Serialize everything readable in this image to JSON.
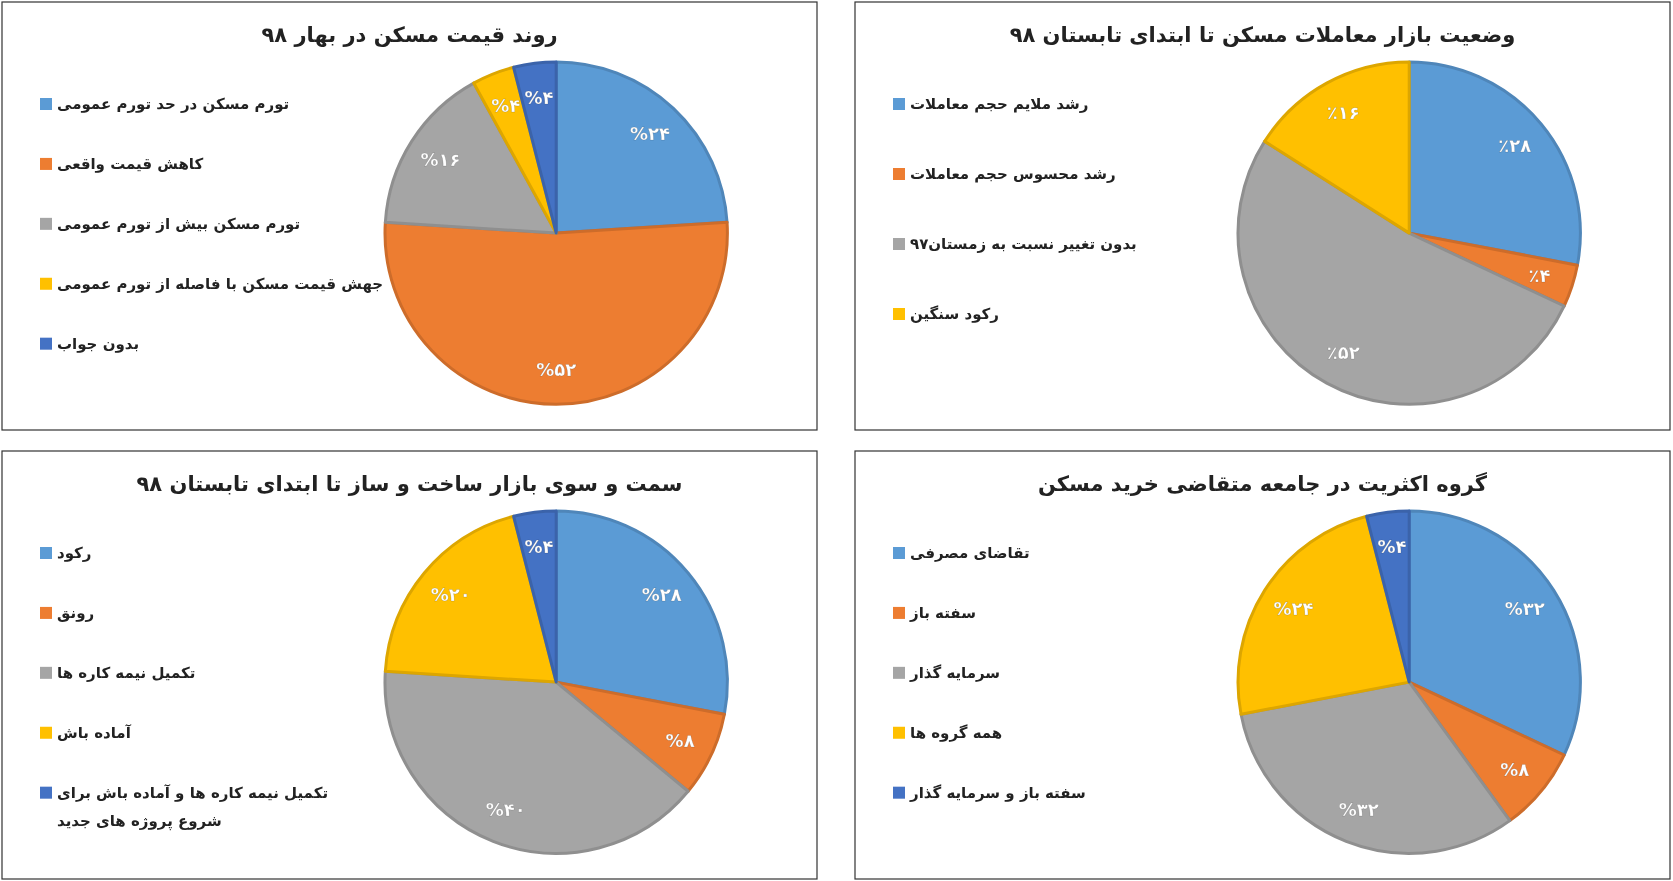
{
  "chart_data": [
    {
      "type": "pie",
      "title": "روند قیمت مسکن در بهار ۹۸",
      "legend": "left",
      "categories": [
        "تورم مسکن در حد تورم عمومی",
        "کاهش قیمت واقعی",
        "تورم مسکن بیش از تورم عمومی",
        "جهش قیمت مسکن با فاصله از تورم عمومی",
        "بدون جواب"
      ],
      "values": [
        24,
        52,
        16,
        4,
        4
      ],
      "value_labels": [
        "%۲۴",
        "%۵۲",
        "%۱۶",
        "%۴",
        "%۴"
      ],
      "colors": [
        "#5b9bd5",
        "#ed7d31",
        "#a5a5a5",
        "#ffc000",
        "#4472c4"
      ]
    },
    {
      "type": "pie",
      "title": "وضعیت بازار معاملات مسکن تا ابتدای تابستان ۹۸",
      "legend": "left",
      "categories": [
        "رشد ملایم حجم معاملات",
        "رشد محسوس حجم معاملات",
        "بدون تغییر نسبت به زمستان۹۷",
        "رکود سنگین"
      ],
      "values": [
        28,
        4,
        52,
        16
      ],
      "value_labels": [
        "٪۲۸",
        "٪۴",
        "٪۵۲",
        "٪۱۶"
      ],
      "colors": [
        "#5b9bd5",
        "#ed7d31",
        "#a5a5a5",
        "#ffc000"
      ]
    },
    {
      "type": "pie",
      "title": "سمت و سوی بازار ساخت و ساز تا ابتدای تابستان ۹۸",
      "legend": "left",
      "categories": [
        "رکود",
        "رونق",
        "تکمیل نیمه کاره ها",
        "آماده باش",
        "تکمیل نیمه کاره ها و آماده باش برای شروع پروژه های جدید"
      ],
      "values": [
        28,
        8,
        40,
        20,
        4
      ],
      "value_labels": [
        "%۲۸",
        "%۸",
        "%۴۰",
        "%۲۰",
        "%۴"
      ],
      "colors": [
        "#5b9bd5",
        "#ed7d31",
        "#a5a5a5",
        "#ffc000",
        "#4472c4"
      ]
    },
    {
      "type": "pie",
      "title": "گروه اکثریت در جامعه متقاضی خرید مسکن",
      "legend": "left",
      "categories": [
        "تقاضای مصرفی",
        "سفته باز",
        "سرمایه گذار",
        "همه گروه ها",
        "سفته باز و سرمایه گذار"
      ],
      "values": [
        32,
        8,
        32,
        24,
        4
      ],
      "value_labels": [
        "%۳۲",
        "%۸",
        "%۳۲",
        "%۲۴",
        "%۴"
      ],
      "colors": [
        "#5b9bd5",
        "#ed7d31",
        "#a5a5a5",
        "#ffc000",
        "#4472c4"
      ]
    }
  ]
}
